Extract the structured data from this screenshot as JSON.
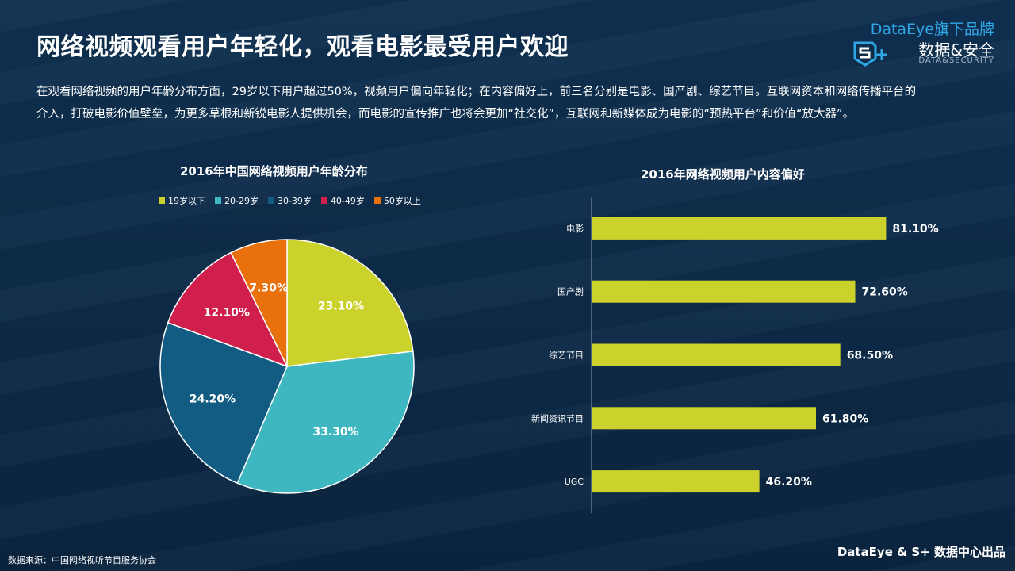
{
  "title": "网络视频观看用户年轻化，观看电影最受用户欢迎",
  "brand": {
    "top": "DataEye旗下品牌",
    "cn": "数据&安全",
    "en": "DATA&SECURITY"
  },
  "description": "在观看网络视频的用户年龄分布方面，29岁以下用户超过50%，视频用户偏向年轻化；在内容偏好上，前三名分别是电影、国产剧、综艺节目。互联网资本和网络传播平台的介入，打破电影价值壁垒，为更多草根和新锐电影人提供机会，而电影的宣传推广也将会更加“社交化”，互联网和新媒体成为电影的“预热平台”和价值“放大器”。",
  "footer": {
    "right": "DataEye & S+ 数据中心出品",
    "source": "数据来源：中国网络视听节目服务协会"
  },
  "colors": {
    "background": "#0d2a47",
    "bar": "#ccd22c",
    "brand_blue": "#2fa6e6"
  },
  "chart_data": [
    {
      "type": "pie",
      "title": "2016年中国网络视频用户年龄分布",
      "legend_position": "top",
      "series": [
        {
          "name": "19岁以下",
          "value": 23.1,
          "label": "23.10%",
          "color": "#ccd22c"
        },
        {
          "name": "20-29岁",
          "value": 33.3,
          "label": "33.30%",
          "color": "#3fb7c0"
        },
        {
          "name": "30-39岁",
          "value": 24.2,
          "label": "24.20%",
          "color": "#125b82"
        },
        {
          "name": "40-49岁",
          "value": 12.1,
          "label": "12.10%",
          "color": "#d01f4d"
        },
        {
          "name": "50岁以上",
          "value": 7.3,
          "label": "7.30%",
          "color": "#e8700d"
        }
      ]
    },
    {
      "type": "bar",
      "orientation": "horizontal",
      "title": "2016年网络视频用户内容偏好",
      "categories": [
        "电影",
        "国产剧",
        "综艺节目",
        "新闻资讯节目",
        "UGC"
      ],
      "values": [
        81.1,
        72.6,
        68.5,
        61.8,
        46.2
      ],
      "labels": [
        "81.10%",
        "72.60%",
        "68.50%",
        "61.80%",
        "46.20%"
      ],
      "xlim": [
        0,
        100
      ],
      "grid": false
    }
  ]
}
